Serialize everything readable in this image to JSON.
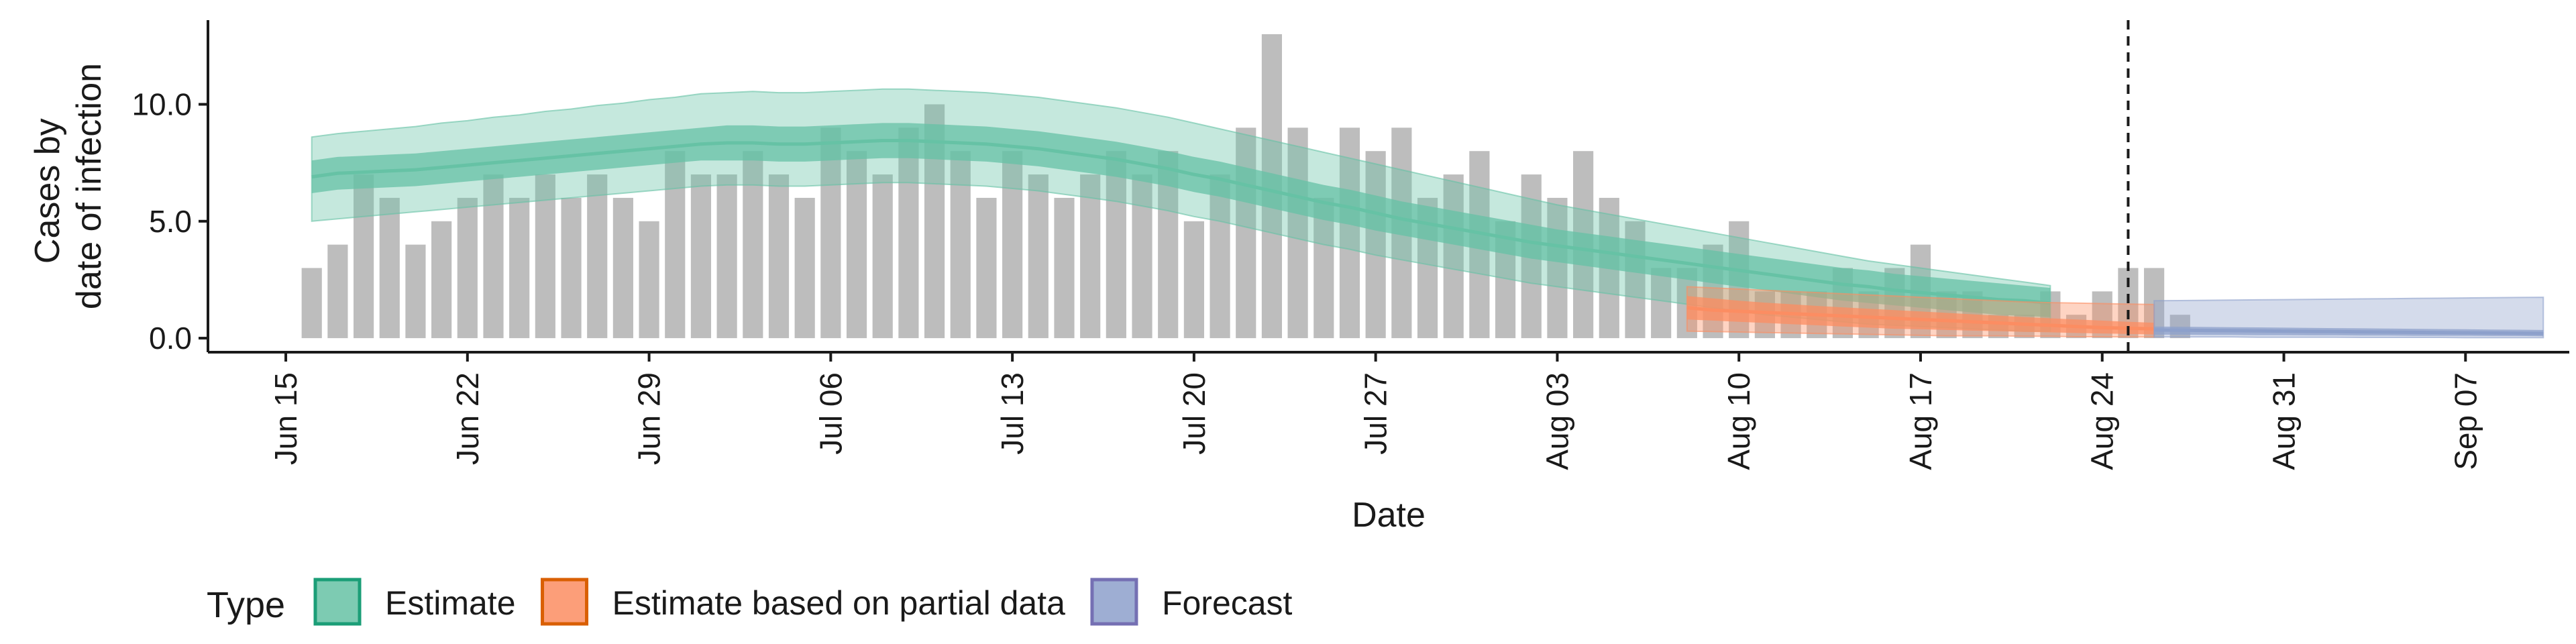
{
  "chart_data": {
    "type": "bar",
    "xlabel": "Date",
    "ylabel_lines": [
      "Cases by",
      "date of infection"
    ],
    "ylim": [
      -0.6,
      13.6
    ],
    "yticks": [
      0,
      5,
      10
    ],
    "ytick_labels": [
      "0.0",
      "5.0",
      "10.0"
    ],
    "xlim": [
      "2020-06-12",
      "2020-09-11"
    ],
    "xticks": [
      "2020-06-15",
      "2020-06-22",
      "2020-06-29",
      "2020-07-06",
      "2020-07-13",
      "2020-07-20",
      "2020-07-27",
      "2020-08-03",
      "2020-08-10",
      "2020-08-17",
      "2020-08-24",
      "2020-08-31",
      "2020-09-07"
    ],
    "xtick_labels": [
      "Jun 15",
      "Jun 22",
      "Jun 29",
      "Jul 06",
      "Jul 13",
      "Jul 20",
      "Jul 27",
      "Aug 03",
      "Aug 10",
      "Aug 17",
      "Aug 24",
      "Aug 31",
      "Sep 07"
    ],
    "vline_date": "2020-08-25",
    "bars": {
      "start": "2020-06-16",
      "values": [
        3,
        4,
        7,
        6,
        4,
        5,
        6,
        7,
        6,
        7,
        6,
        7,
        6,
        5,
        8,
        7,
        7,
        8,
        7,
        6,
        9,
        8,
        7,
        9,
        10,
        8,
        6,
        8,
        7,
        6,
        7,
        8,
        7,
        8,
        5,
        7,
        9,
        13,
        9,
        6,
        9,
        8,
        9,
        6,
        7,
        8,
        5,
        7,
        6,
        8,
        6,
        5,
        3,
        3,
        4,
        5,
        2,
        2,
        2,
        3,
        2,
        3,
        4,
        2,
        2,
        1,
        1,
        2,
        1,
        2,
        3,
        3,
        1
      ],
      "color": "#bdbdbd"
    },
    "bands": [
      {
        "name": "Estimate",
        "fill": "#66c2a5",
        "start": "2020-06-16",
        "dates_step_days": 1,
        "median": [
          6.9,
          7.05,
          7.1,
          7.15,
          7.2,
          7.3,
          7.4,
          7.5,
          7.6,
          7.7,
          7.8,
          7.9,
          8.0,
          8.1,
          8.2,
          8.3,
          8.35,
          8.35,
          8.3,
          8.3,
          8.35,
          8.4,
          8.45,
          8.45,
          8.4,
          8.35,
          8.3,
          8.2,
          8.1,
          7.95,
          7.8,
          7.65,
          7.45,
          7.25,
          7.0,
          6.8,
          6.55,
          6.3,
          6.05,
          5.8,
          5.6,
          5.35,
          5.1,
          4.9,
          4.7,
          4.5,
          4.3,
          4.1,
          3.95,
          3.8,
          3.65,
          3.5,
          3.35,
          3.2,
          3.05,
          2.9,
          2.75,
          2.6,
          2.45,
          2.3,
          2.2,
          2.05,
          1.95,
          1.85,
          1.75,
          1.65,
          1.6,
          1.5
        ],
        "inner_low": [
          6.2,
          6.35,
          6.4,
          6.45,
          6.5,
          6.6,
          6.7,
          6.8,
          6.9,
          7.0,
          7.1,
          7.2,
          7.3,
          7.4,
          7.5,
          7.6,
          7.6,
          7.6,
          7.55,
          7.55,
          7.6,
          7.65,
          7.7,
          7.7,
          7.65,
          7.6,
          7.55,
          7.45,
          7.35,
          7.2,
          7.05,
          6.9,
          6.7,
          6.5,
          6.25,
          6.05,
          5.8,
          5.55,
          5.3,
          5.05,
          4.85,
          4.6,
          4.4,
          4.2,
          4.0,
          3.8,
          3.6,
          3.4,
          3.25,
          3.1,
          2.95,
          2.8,
          2.65,
          2.5,
          2.35,
          2.2,
          2.05,
          1.9,
          1.75,
          1.6,
          1.5,
          1.4,
          1.3,
          1.2,
          1.1,
          1.0,
          0.95,
          0.9
        ],
        "inner_high": [
          7.6,
          7.75,
          7.8,
          7.85,
          7.9,
          8.0,
          8.1,
          8.2,
          8.3,
          8.4,
          8.5,
          8.6,
          8.7,
          8.8,
          8.9,
          9.0,
          9.1,
          9.1,
          9.05,
          9.05,
          9.1,
          9.15,
          9.2,
          9.2,
          9.15,
          9.1,
          9.05,
          8.95,
          8.85,
          8.7,
          8.55,
          8.4,
          8.2,
          8.0,
          7.75,
          7.55,
          7.3,
          7.05,
          6.8,
          6.55,
          6.35,
          6.1,
          5.85,
          5.65,
          5.45,
          5.25,
          5.05,
          4.85,
          4.65,
          4.5,
          4.35,
          4.2,
          4.05,
          3.9,
          3.75,
          3.6,
          3.45,
          3.3,
          3.15,
          3.0,
          2.9,
          2.75,
          2.65,
          2.55,
          2.45,
          2.35,
          2.25,
          2.15
        ],
        "outer_low": [
          5.0,
          5.1,
          5.2,
          5.3,
          5.4,
          5.5,
          5.6,
          5.7,
          5.8,
          5.9,
          6.0,
          6.1,
          6.2,
          6.3,
          6.4,
          6.5,
          6.55,
          6.55,
          6.5,
          6.5,
          6.55,
          6.6,
          6.65,
          6.65,
          6.6,
          6.55,
          6.5,
          6.4,
          6.3,
          6.15,
          6.0,
          5.85,
          5.65,
          5.45,
          5.2,
          5.0,
          4.75,
          4.5,
          4.25,
          4.0,
          3.8,
          3.55,
          3.35,
          3.15,
          2.95,
          2.75,
          2.55,
          2.35,
          2.2,
          2.05,
          1.9,
          1.75,
          1.6,
          1.45,
          1.3,
          1.15,
          1.0,
          0.9,
          0.8,
          0.7,
          0.6,
          0.55,
          0.5,
          0.45,
          0.4,
          0.35,
          0.3,
          0.3
        ],
        "outer_high": [
          8.6,
          8.75,
          8.85,
          8.95,
          9.05,
          9.2,
          9.3,
          9.45,
          9.55,
          9.7,
          9.8,
          9.95,
          10.05,
          10.2,
          10.3,
          10.45,
          10.5,
          10.55,
          10.5,
          10.5,
          10.55,
          10.6,
          10.65,
          10.65,
          10.6,
          10.55,
          10.5,
          10.4,
          10.3,
          10.15,
          10.0,
          9.85,
          9.65,
          9.45,
          9.2,
          8.95,
          8.7,
          8.45,
          8.2,
          7.95,
          7.7,
          7.45,
          7.2,
          6.95,
          6.7,
          6.45,
          6.2,
          5.95,
          5.7,
          5.5,
          5.3,
          5.1,
          4.9,
          4.7,
          4.5,
          4.3,
          4.1,
          3.9,
          3.7,
          3.5,
          3.3,
          3.15,
          3.0,
          2.85,
          2.7,
          2.55,
          2.4,
          2.25
        ]
      },
      {
        "name": "Estimate based on partial data",
        "fill": "#fc8d62",
        "start": "2020-08-08",
        "dates_step_days": 1,
        "median": [
          1.3,
          1.2,
          1.15,
          1.1,
          1.05,
          1.0,
          0.95,
          0.9,
          0.85,
          0.8,
          0.75,
          0.7,
          0.65,
          0.6,
          0.55,
          0.5,
          0.45,
          0.42,
          0.4
        ],
        "inner_low": [
          0.8,
          0.75,
          0.7,
          0.65,
          0.6,
          0.55,
          0.5,
          0.45,
          0.4,
          0.38,
          0.35,
          0.32,
          0.3,
          0.27,
          0.25,
          0.22,
          0.2,
          0.18,
          0.16
        ],
        "inner_high": [
          1.8,
          1.7,
          1.6,
          1.52,
          1.45,
          1.38,
          1.32,
          1.26,
          1.2,
          1.14,
          1.08,
          1.02,
          0.96,
          0.9,
          0.85,
          0.8,
          0.75,
          0.7,
          0.66
        ],
        "outer_low": [
          0.3,
          0.28,
          0.26,
          0.24,
          0.22,
          0.2,
          0.18,
          0.16,
          0.14,
          0.12,
          0.1,
          0.1,
          0.1,
          0.08,
          0.08,
          0.06,
          0.06,
          0.05,
          0.05
        ],
        "outer_high": [
          2.2,
          2.15,
          2.1,
          2.05,
          2.0,
          1.95,
          1.9,
          1.85,
          1.8,
          1.75,
          1.7,
          1.65,
          1.6,
          1.55,
          1.52,
          1.5,
          1.48,
          1.46,
          1.44
        ]
      },
      {
        "name": "Forecast",
        "fill": "#8da0cb",
        "start": "2020-08-26",
        "dates_step_days": 1,
        "median": [
          0.35,
          0.34,
          0.33,
          0.32,
          0.31,
          0.3,
          0.29,
          0.28,
          0.27,
          0.26,
          0.25,
          0.24,
          0.23,
          0.22,
          0.21,
          0.2
        ],
        "inner_low": [
          0.15,
          0.15,
          0.14,
          0.14,
          0.13,
          0.13,
          0.12,
          0.12,
          0.11,
          0.11,
          0.1,
          0.1,
          0.1,
          0.09,
          0.09,
          0.08
        ],
        "inner_high": [
          0.5,
          0.49,
          0.48,
          0.47,
          0.46,
          0.45,
          0.44,
          0.43,
          0.42,
          0.41,
          0.4,
          0.39,
          0.38,
          0.37,
          0.36,
          0.35
        ],
        "outer_low": [
          0.05,
          0.05,
          0.05,
          0.05,
          0.04,
          0.04,
          0.04,
          0.04,
          0.03,
          0.03,
          0.03,
          0.03,
          0.02,
          0.02,
          0.02,
          0.02
        ],
        "outer_high": [
          1.6,
          1.61,
          1.62,
          1.63,
          1.64,
          1.65,
          1.66,
          1.67,
          1.68,
          1.69,
          1.7,
          1.71,
          1.72,
          1.73,
          1.74,
          1.75
        ]
      }
    ],
    "legend": {
      "title": "Type",
      "placement": "bottom-left",
      "items": [
        {
          "label": "Estimate",
          "fill": "#66c2a5",
          "stroke": "#1b9e77"
        },
        {
          "label": "Estimate based on partial data",
          "fill": "#fc8d62",
          "stroke": "#d95f02"
        },
        {
          "label": "Forecast",
          "fill": "#8da0cb",
          "stroke": "#7570b3"
        }
      ]
    }
  }
}
